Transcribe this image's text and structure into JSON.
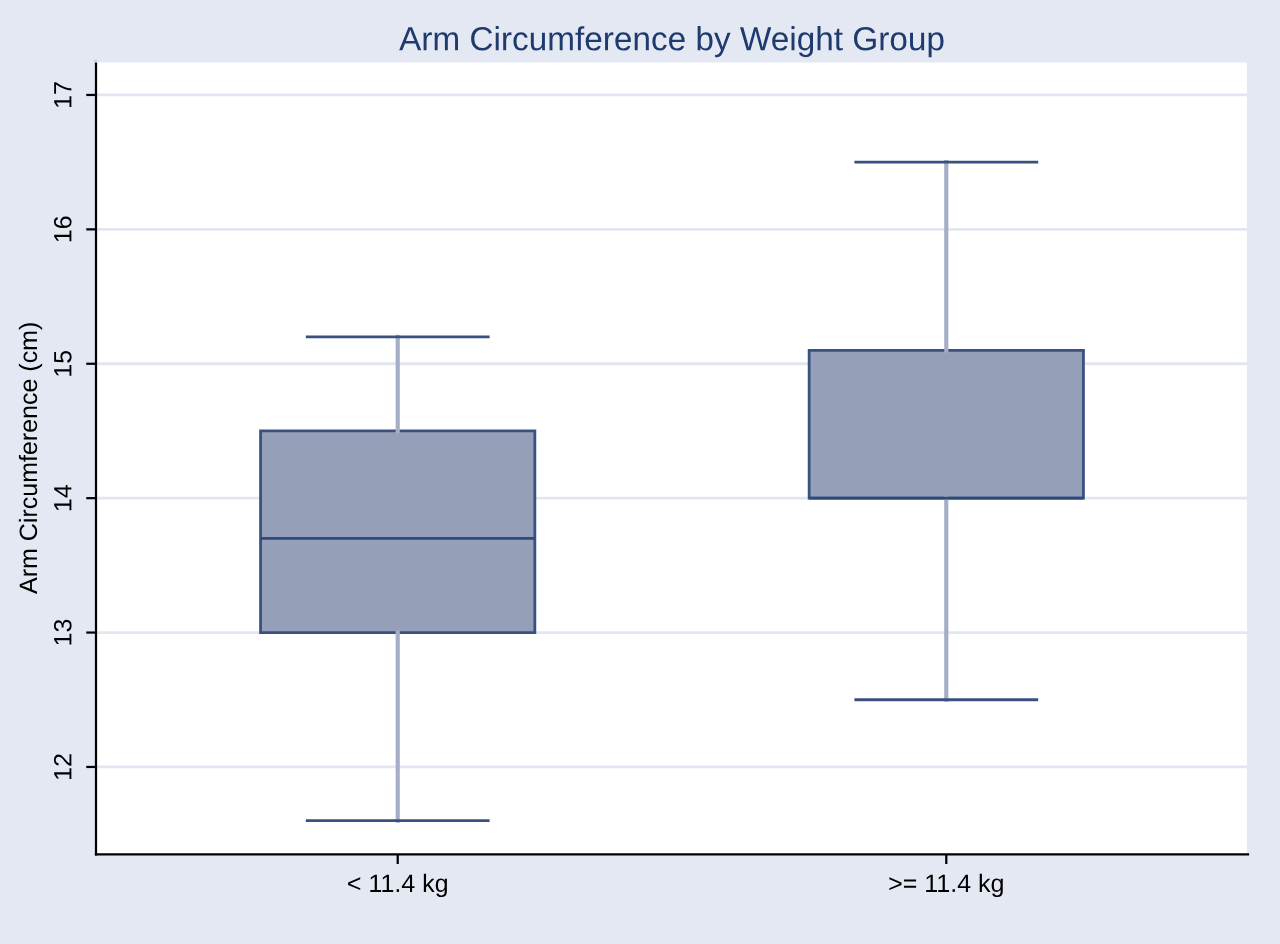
{
  "chart_data": {
    "type": "box",
    "title": "Arm Circumference by Weight Group",
    "ylabel": "Arm Circumference (cm)",
    "categories": [
      "< 11.4 kg",
      ">= 11.4 kg"
    ],
    "boxes": [
      {
        "low": 11.6,
        "q1": 13.0,
        "median": 13.7,
        "q3": 14.5,
        "high": 15.2
      },
      {
        "low": 12.5,
        "q1": 14.0,
        "median": 14.0,
        "q3": 15.1,
        "high": 16.5
      }
    ],
    "color": "#95a0b8",
    "ylim": [
      11.35,
      17.25
    ],
    "yticks": [
      12,
      13,
      14,
      15,
      16,
      17
    ],
    "grid": "y"
  }
}
